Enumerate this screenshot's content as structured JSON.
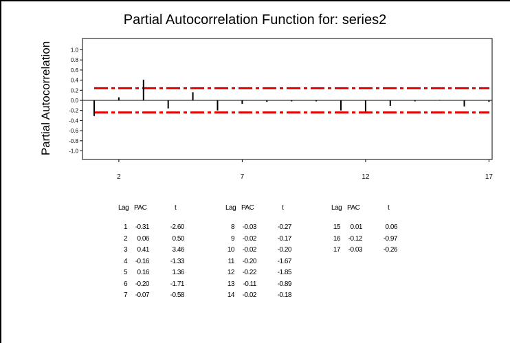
{
  "chart_data": {
    "type": "bar",
    "title": "Partial Autocorrelation Function for: series2",
    "ylabel": "Partial Autocorrelation",
    "xlabel": "",
    "ylim": [
      -1.0,
      1.0
    ],
    "yticks": [
      "1.0",
      "0.8",
      "0.6",
      "0.4",
      "0.2",
      "0.0",
      "-0.2",
      "-0.4",
      "-0.6",
      "-0.8",
      "-1.0"
    ],
    "xticks": [
      "2",
      "7",
      "12",
      "17"
    ],
    "lags": [
      1,
      2,
      3,
      4,
      5,
      6,
      7,
      8,
      9,
      10,
      11,
      12,
      13,
      14,
      15,
      16,
      17
    ],
    "values": [
      -0.31,
      0.06,
      0.41,
      -0.16,
      0.16,
      -0.2,
      -0.07,
      -0.03,
      -0.02,
      -0.02,
      -0.2,
      -0.22,
      -0.11,
      -0.02,
      0.01,
      -0.12,
      -0.03
    ],
    "significance_limits": [
      0.24,
      -0.24
    ],
    "limit_color": "#e00000",
    "bar_color": "#000000"
  },
  "table": {
    "headers": [
      "Lag",
      "PAC",
      "t"
    ],
    "groups": [
      [
        [
          "1",
          "-0.31",
          "-2.60"
        ],
        [
          "2",
          "0.06",
          "0.50"
        ],
        [
          "3",
          "0.41",
          "3.46"
        ],
        [
          "4",
          "-0.16",
          "-1.33"
        ],
        [
          "5",
          "0.16",
          "1.36"
        ],
        [
          "6",
          "-0.20",
          "-1.71"
        ],
        [
          "7",
          "-0.07",
          "-0.58"
        ]
      ],
      [
        [
          "8",
          "-0.03",
          "-0.27"
        ],
        [
          "9",
          "-0.02",
          "-0.17"
        ],
        [
          "10",
          "-0.02",
          "-0.20"
        ],
        [
          "11",
          "-0.20",
          "-1.67"
        ],
        [
          "12",
          "-0.22",
          "-1.85"
        ],
        [
          "13",
          "-0.11",
          "-0.89"
        ],
        [
          "14",
          "-0.02",
          "-0.18"
        ]
      ],
      [
        [
          "15",
          "0.01",
          "0.06"
        ],
        [
          "16",
          "-0.12",
          "-0.97"
        ],
        [
          "17",
          "-0.03",
          "-0.26"
        ]
      ]
    ]
  }
}
